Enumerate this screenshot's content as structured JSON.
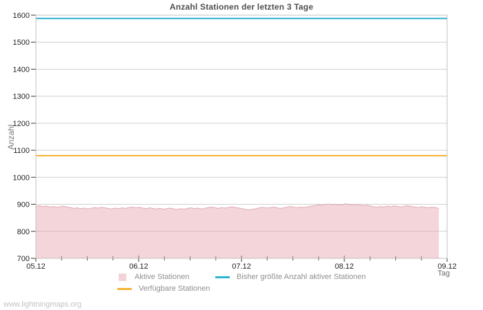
{
  "page": {
    "watermark": "www.lightningmaps.org"
  },
  "chart_data": {
    "type": "area",
    "title": "Anzahl Stationen der letzten 3 Tage",
    "xlabel": "Tag",
    "ylabel": "Anzahl",
    "ylim": [
      700,
      1600
    ],
    "ytick_step": 100,
    "x_categories": [
      "05.12",
      "06.12",
      "07.12",
      "08.12",
      "09.12"
    ],
    "x_minor_ticks_per_interval": 3,
    "grid": "horizontal-only",
    "legend_position": "bottom",
    "x_end_fraction": 0.98,
    "colors": {
      "grid": "#d0d0d0",
      "border": "#c0c0c0",
      "tick_text": "#1f1f1f"
    },
    "series": [
      {
        "name": "Aktive Stationen",
        "type": "area",
        "fill": "rgba(231,162,172,0.45)",
        "stroke": "#dfaab4",
        "swatch": "#f2d4d8",
        "values": [
          893,
          895,
          891,
          894,
          890,
          892,
          889,
          891,
          893,
          890,
          888,
          885,
          887,
          884,
          886,
          883,
          885,
          888,
          886,
          889,
          887,
          885,
          883,
          886,
          884,
          887,
          885,
          888,
          890,
          887,
          889,
          886,
          884,
          887,
          885,
          883,
          885,
          882,
          884,
          886,
          883,
          881,
          884,
          882,
          885,
          887,
          884,
          886,
          883,
          885,
          888,
          890,
          887,
          885,
          888,
          886,
          889,
          891,
          888,
          886,
          884,
          881,
          879,
          882,
          884,
          887,
          889,
          886,
          888,
          890,
          887,
          885,
          887,
          890,
          892,
          889,
          887,
          890,
          888,
          891,
          893,
          895,
          898,
          896,
          899,
          901,
          898,
          900,
          897,
          899,
          902,
          899,
          897,
          900,
          898,
          895,
          897,
          894,
          891,
          889,
          892,
          890,
          893,
          891,
          894,
          892,
          890,
          893,
          895,
          892,
          890,
          888,
          891,
          889,
          887,
          890,
          888,
          885
        ]
      },
      {
        "name": "Bisher größte Anzahl aktiver Stationen",
        "type": "hline",
        "color": "#2bb3d1",
        "value": 1588
      },
      {
        "name": "Verfügbare Stationen",
        "type": "hline",
        "color": "#f9b233",
        "value": 1080
      }
    ]
  }
}
